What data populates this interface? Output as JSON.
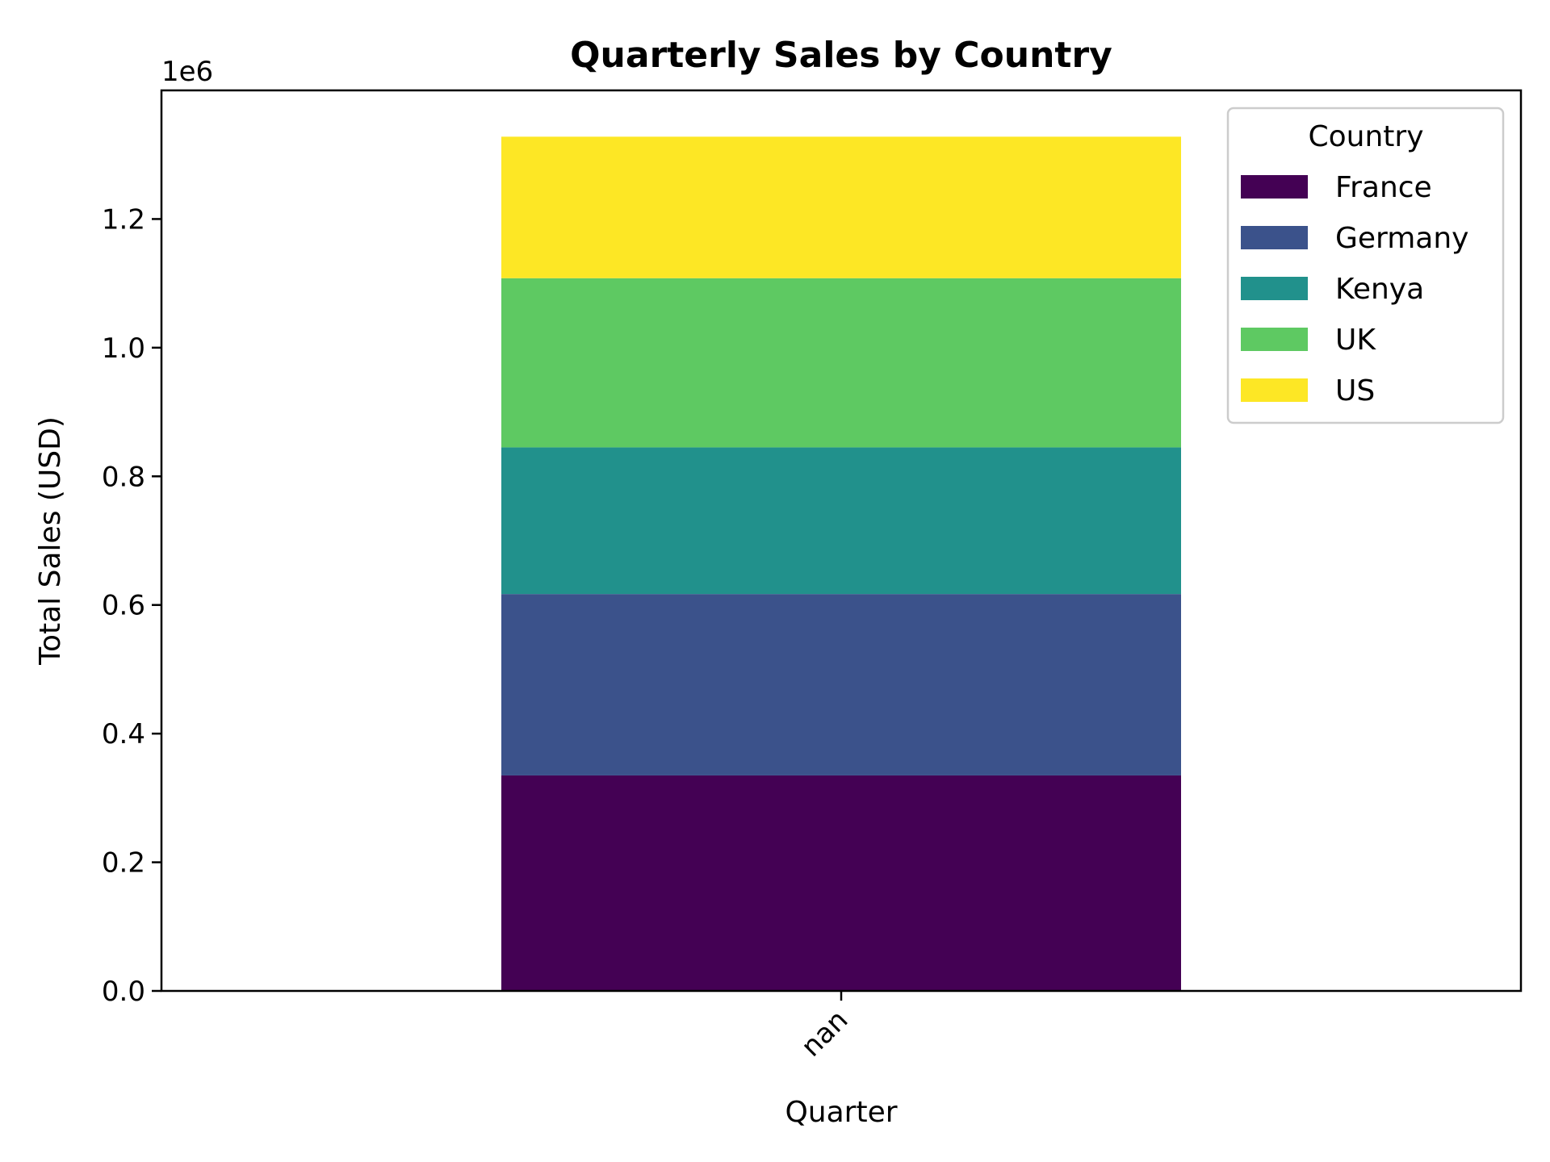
{
  "chart_data": {
    "type": "bar",
    "stacked": true,
    "title": "Quarterly Sales by Country",
    "xlabel": "Quarter",
    "ylabel": "Total Sales (USD)",
    "y_offset_label": "1e6",
    "y_scale": 1000000,
    "categories": [
      "nan"
    ],
    "ylim": [
      0,
      1400000
    ],
    "yticks": [
      0,
      200000,
      400000,
      600000,
      800000,
      1000000,
      1200000
    ],
    "ytick_labels": [
      "0.0",
      "0.2",
      "0.4",
      "0.6",
      "0.8",
      "1.0",
      "1.2"
    ],
    "grid": false,
    "legend": {
      "title": "Country",
      "placement": "top-right"
    },
    "series": [
      {
        "name": "France",
        "color": "#440154",
        "values": [
          335000
        ]
      },
      {
        "name": "Germany",
        "color": "#3b528b",
        "values": [
          282000
        ]
      },
      {
        "name": "Kenya",
        "color": "#21918c",
        "values": [
          228000
        ]
      },
      {
        "name": "UK",
        "color": "#5ec962",
        "values": [
          263000
        ]
      },
      {
        "name": "US",
        "color": "#fde725",
        "values": [
          220000
        ]
      }
    ]
  }
}
